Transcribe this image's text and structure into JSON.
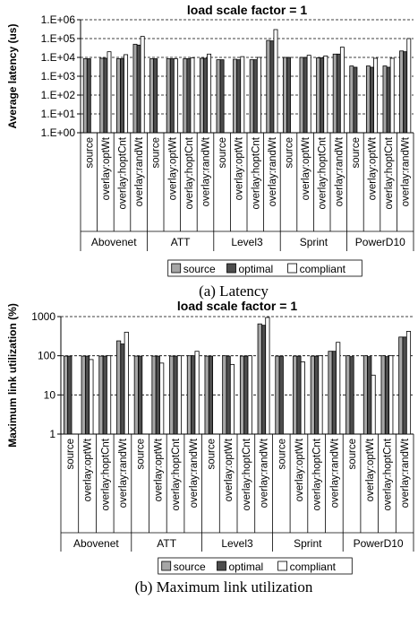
{
  "chart_data": [
    {
      "type": "bar",
      "title": "load scale factor = 1",
      "ylabel": "Average latency (us)",
      "yscale": "log",
      "ylim": [
        1,
        1000000
      ],
      "yticks": [
        1,
        10,
        100,
        1000,
        10000,
        100000,
        1000000
      ],
      "yticklabels": [
        "1.E+00",
        "1.E+01",
        "1.E+02",
        "1.E+03",
        "1.E+04",
        "1.E+05",
        "1.E+06"
      ],
      "grid": "dashed at each decade",
      "caption": "(a) Latency",
      "groups": [
        "Abovenet",
        "ATT",
        "Level3",
        "Sprint",
        "PowerD10"
      ],
      "categories": [
        "source",
        "overlay:optWt",
        "overlay:hoptCnt",
        "overlay:randWt"
      ],
      "series": [
        {
          "name": "source",
          "color": "#a6a6a6",
          "values": [
            [
              8500,
              9000,
              8500,
              50000
            ],
            [
              8500,
              8500,
              8500,
              9000
            ],
            [
              7500,
              8000,
              7500,
              80000
            ],
            [
              10000,
              10000,
              9500,
              15000
            ],
            [
              3500,
              3500,
              3500,
              22000
            ]
          ]
        },
        {
          "name": "optimal",
          "color": "#4d4d4d",
          "values": [
            [
              8500,
              9000,
              8500,
              45000
            ],
            [
              8500,
              8500,
              8500,
              9000
            ],
            [
              7500,
              7500,
              7500,
              75000
            ],
            [
              10000,
              10000,
              9500,
              15000
            ],
            [
              3000,
              3000,
              3000,
              20000
            ]
          ]
        },
        {
          "name": "compliant",
          "color": "#ffffff",
          "values": [
            [
              null,
              20000,
              14000,
              130000
            ],
            [
              null,
              8500,
              9500,
              15000
            ],
            [
              null,
              11000,
              10000,
              300000
            ],
            [
              null,
              13000,
              12000,
              35000
            ],
            [
              null,
              9000,
              9000,
              100000
            ]
          ]
        }
      ]
    },
    {
      "type": "bar",
      "title": "load scale factor = 1",
      "ylabel": "Maximum link utilization (%)",
      "yscale": "log",
      "ylim": [
        1,
        1000
      ],
      "yticks": [
        1,
        10,
        100,
        1000
      ],
      "yticklabels": [
        "1",
        "10",
        "100",
        "1000"
      ],
      "grid": "dashed at each decade",
      "caption": "(b) Maximum link utilization",
      "groups": [
        "Abovenet",
        "ATT",
        "Level3",
        "Sprint",
        "PowerD10"
      ],
      "categories": [
        "source",
        "overlay:optWt",
        "overlay:hoptCnt",
        "overlay:randWt"
      ],
      "series": [
        {
          "name": "source",
          "color": "#a6a6a6",
          "values": [
            [
              98,
              98,
              98,
              240
            ],
            [
              98,
              98,
              98,
              100
            ],
            [
              98,
              100,
              98,
              650
            ],
            [
              98,
              98,
              98,
              130
            ],
            [
              100,
              100,
              100,
              300
            ]
          ]
        },
        {
          "name": "optimal",
          "color": "#4d4d4d",
          "values": [
            [
              98,
              98,
              98,
              200
            ],
            [
              98,
              98,
              98,
              100
            ],
            [
              98,
              98,
              98,
              600
            ],
            [
              98,
              98,
              98,
              130
            ],
            [
              95,
              95,
              95,
              300
            ]
          ]
        },
        {
          "name": "compliant",
          "color": "#ffffff",
          "values": [
            [
              null,
              80,
              100,
              400
            ],
            [
              null,
              65,
              100,
              130
            ],
            [
              null,
              60,
              100,
              950
            ],
            [
              null,
              70,
              100,
              220
            ],
            [
              null,
              32,
              100,
              420
            ]
          ]
        }
      ]
    }
  ]
}
